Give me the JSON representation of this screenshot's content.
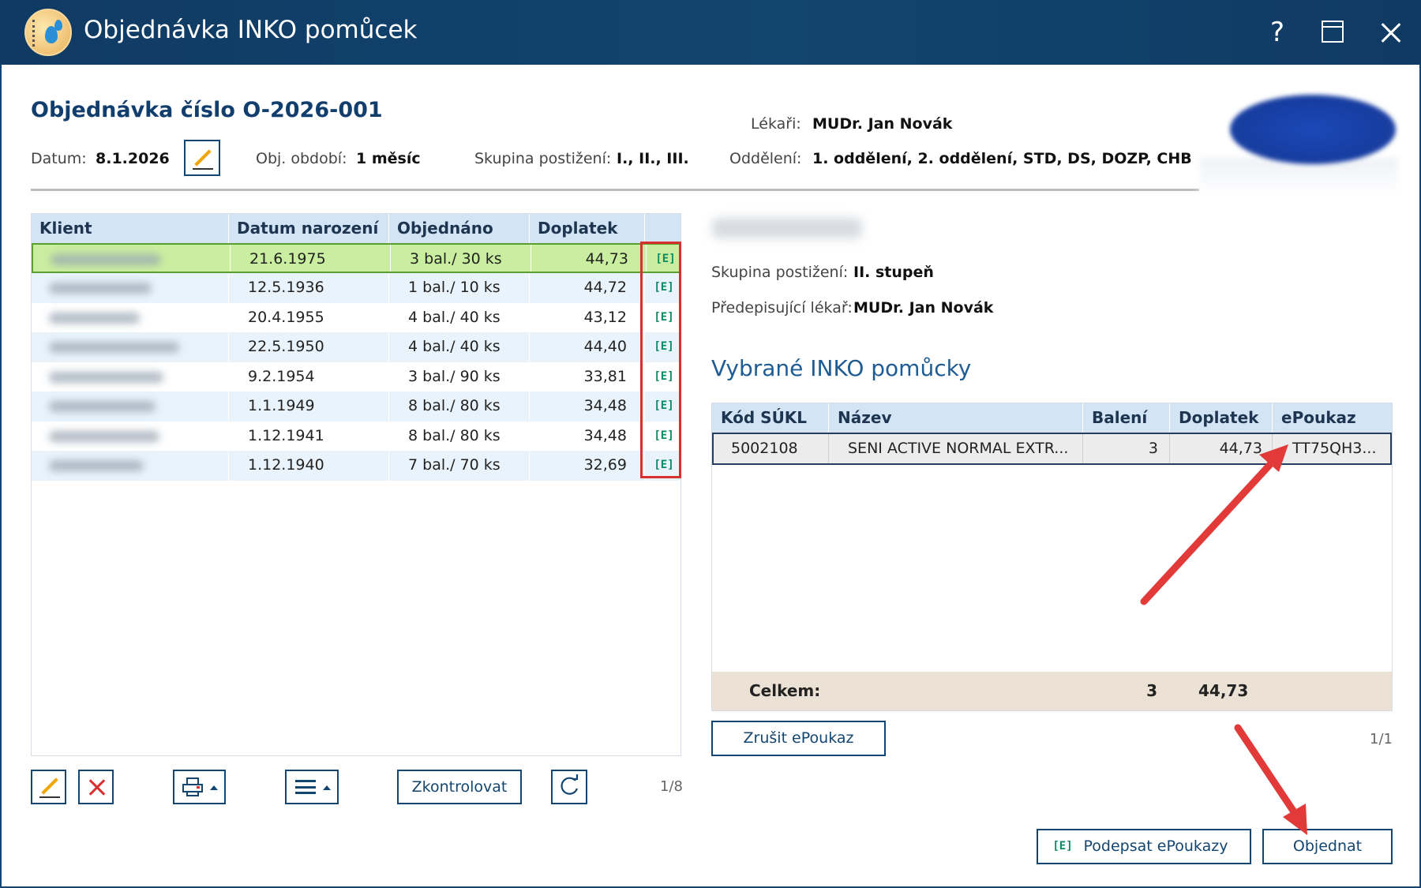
{
  "window": {
    "title": "Objednávka INKO pomůcek",
    "help_label": "?"
  },
  "header": {
    "order_title": "Objednávka číslo O-2026-001",
    "date_label": "Datum:",
    "date_value": "8.1.2026",
    "period_label": "Obj. období:",
    "period_value": "1 měsíc",
    "group_label": "Skupina postižení:",
    "group_value": "I., II., III.",
    "doctors_label": "Lékaři:",
    "doctors_value": "MUDr. Jan Novák",
    "departments_label": "Oddělení:",
    "departments_value": "1. oddělení, 2. oddělení, STD, DS, DOZP, CHB"
  },
  "clients_table": {
    "columns": [
      "Klient",
      "Datum narození",
      "Objednáno",
      "Doplatek"
    ],
    "epoukaz_icon_label": "[E]",
    "rows": [
      {
        "dob": "21.6.1975",
        "ordered": "3 bal./ 30 ks",
        "surcharge": "44,73",
        "selected": true
      },
      {
        "dob": "12.5.1936",
        "ordered": "1 bal./ 10 ks",
        "surcharge": "44,72",
        "selected": false
      },
      {
        "dob": "20.4.1955",
        "ordered": "4 bal./ 40 ks",
        "surcharge": "43,12",
        "selected": false
      },
      {
        "dob": "22.5.1950",
        "ordered": "4 bal./ 40 ks",
        "surcharge": "44,40",
        "selected": false
      },
      {
        "dob": "9.2.1954",
        "ordered": "3 bal./ 90 ks",
        "surcharge": "33,81",
        "selected": false
      },
      {
        "dob": "1.1.1949",
        "ordered": "8 bal./ 80 ks",
        "surcharge": "34,48",
        "selected": false
      },
      {
        "dob": "1.12.1941",
        "ordered": "8 bal./ 80 ks",
        "surcharge": "34,48",
        "selected": false
      },
      {
        "dob": "1.12.1940",
        "ordered": "7 bal./ 70 ks",
        "surcharge": "32,69",
        "selected": false
      }
    ]
  },
  "left_toolbar": {
    "check_label": "Zkontrolovat",
    "counter": "1/8"
  },
  "patient": {
    "group_label": "Skupina postižení:",
    "group_value": "II. stupeň",
    "doctor_label": "Předepisující lékař:",
    "doctor_value": "MUDr. Jan Novák"
  },
  "items": {
    "section_title": "Vybrané INKO pomůcky",
    "columns": [
      "Kód SÚKL",
      "Název",
      "Balení",
      "Doplatek",
      "ePoukaz"
    ],
    "rows": [
      {
        "code": "5002108",
        "name": "SENI ACTIVE NORMAL EXTR...",
        "packs": "3",
        "surcharge": "44,73",
        "epoukaz": "TT75QH3..."
      }
    ],
    "total_label": "Celkem:",
    "total_packs": "3",
    "total_surcharge": "44,73",
    "counter": "1/1"
  },
  "buttons": {
    "cancel_epoukaz": "Zrušit ePoukaz",
    "sign_epoukazy": "Podepsat ePoukazy",
    "order": "Objednat"
  },
  "colors": {
    "titlebar": "#12456f",
    "accent": "#123e6e",
    "selected_row": "#c9ee9f",
    "annotation_red": "#d9302f"
  }
}
